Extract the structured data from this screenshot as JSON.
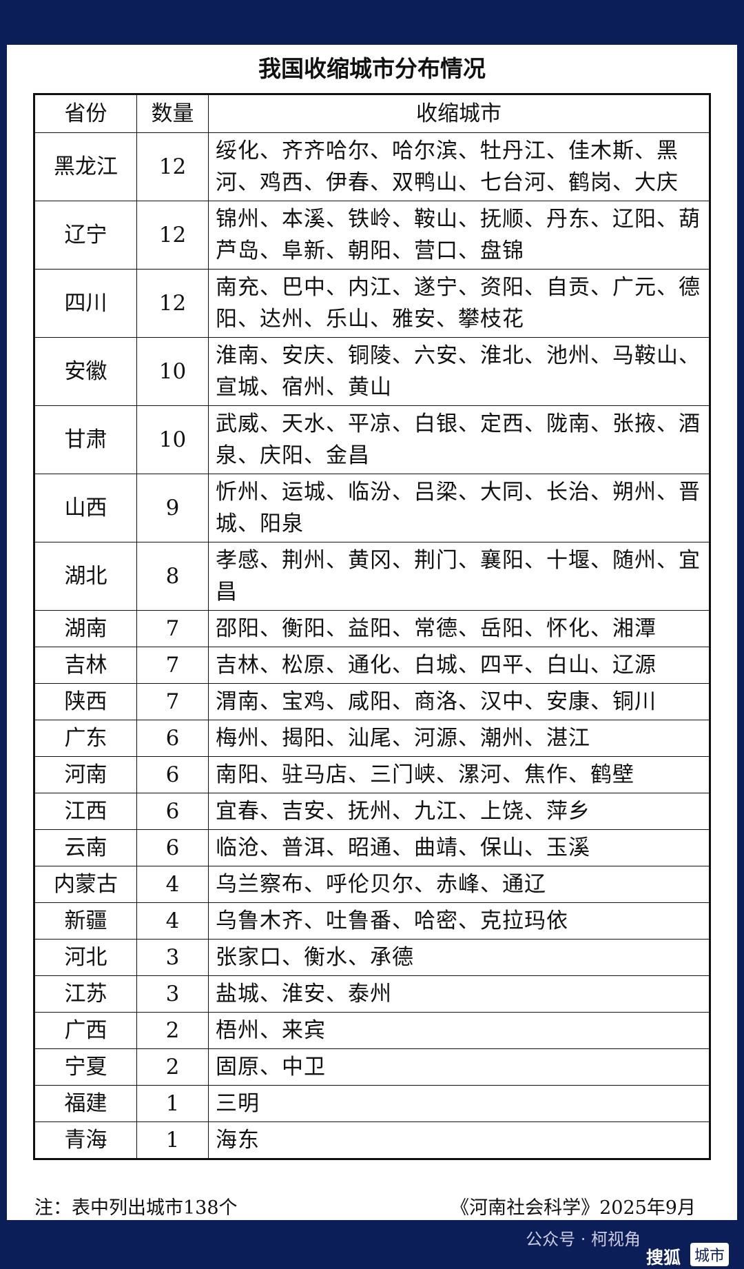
{
  "title": "我国收缩城市分布情况",
  "table": {
    "header": [
      "省份",
      "数量",
      "收缩城市"
    ],
    "rows": [
      [
        "黑龙江",
        12,
        "绥化、齐齐哈尔、哈尔滨、牡丹江、佳木斯、黑河、鸡西、伊春、双鸭山、七台河、鹤岗、大庆"
      ],
      [
        "辽宁",
        12,
        "锦州、本溪、铁岭、鞍山、抚顺、丹东、辽阳、葫芦岛、阜新、朝阳、营口、盘锦"
      ],
      [
        "四川",
        12,
        "南充、巴中、内江、遂宁、资阳、自贡、广元、德阳、达州、乐山、雅安、攀枝花"
      ],
      [
        "安徽",
        10,
        "淮南、安庆、铜陵、六安、淮北、池州、马鞍山、宣城、宿州、黄山"
      ],
      [
        "甘肃",
        10,
        "武威、天水、平凉、白银、定西、陇南、张掖、酒泉、庆阳、金昌"
      ],
      [
        "山西",
        9,
        "忻州、运城、临汾、吕梁、大同、长治、朔州、晋城、阳泉"
      ],
      [
        "湖北",
        8,
        "孝感、荆州、黄冈、荆门、襄阳、十堰、随州、宜昌"
      ],
      [
        "湖南",
        7,
        "邵阳、衡阳、益阳、常德、岳阳、怀化、湘潭"
      ],
      [
        "吉林",
        7,
        "吉林、松原、通化、白城、四平、白山、辽源"
      ],
      [
        "陕西",
        7,
        "渭南、宝鸡、咸阳、商洛、汉中、安康、铜川"
      ],
      [
        "广东",
        6,
        "梅州、揭阳、汕尾、河源、潮州、湛江"
      ],
      [
        "河南",
        6,
        "南阳、驻马店、三门峡、漯河、焦作、鹤壁"
      ],
      [
        "江西",
        6,
        "宜春、吉安、抚州、九江、上饶、萍乡"
      ],
      [
        "云南",
        6,
        "临沧、普洱、昭通、曲靖、保山、玉溪"
      ],
      [
        "内蒙古",
        4,
        "乌兰察布、呼伦贝尔、赤峰、通辽"
      ],
      [
        "新疆",
        4,
        "乌鲁木齐、吐鲁番、哈密、克拉玛依"
      ],
      [
        "河北",
        3,
        "张家口、衡水、承德"
      ],
      [
        "江苏",
        3,
        "盐城、淮安、泰州"
      ],
      [
        "广西",
        2,
        "梧州、来宾"
      ],
      [
        "宁夏",
        2,
        "固原、中卫"
      ],
      [
        "福建",
        1,
        "三明"
      ],
      [
        "青海",
        1,
        "海东"
      ]
    ]
  },
  "footer": {
    "note": "注：表中列出城市138个",
    "source": "《河南社会科学》2025年9月"
  },
  "watermark": {
    "account": "公众号 · 柯视角",
    "brand": "搜狐",
    "channel": "城市"
  }
}
